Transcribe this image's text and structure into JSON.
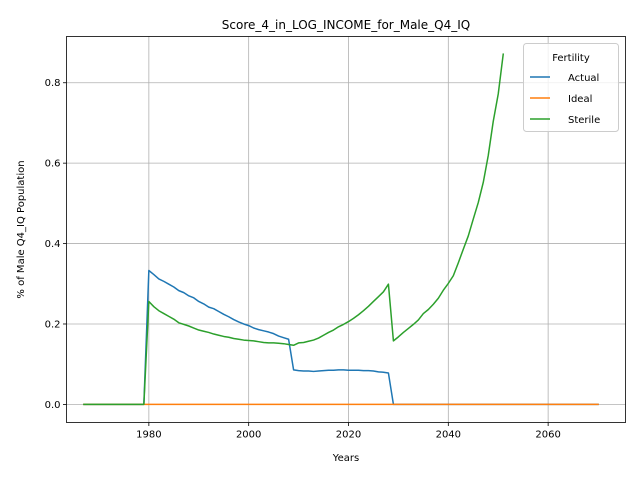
{
  "chart_data": {
    "type": "line",
    "title": "Score_4_in_LOG_INCOME_for_Male_Q4_IQ",
    "xlabel": "Years",
    "ylabel": "% of Male Q4_IQ Population",
    "xlim": [
      1963.5,
      2075.5
    ],
    "ylim": [
      -0.045,
      0.915
    ],
    "xticks": [
      1980,
      2000,
      2020,
      2040,
      2060
    ],
    "yticks": [
      0.0,
      0.2,
      0.4,
      0.6,
      0.8
    ],
    "xtick_labels": [
      "1980",
      "2000",
      "2020",
      "2040",
      "2060"
    ],
    "ytick_labels": [
      "0.0",
      "0.2",
      "0.4",
      "0.6",
      "0.8"
    ],
    "grid": true,
    "legend": {
      "title": "Fertility",
      "position": "top-right"
    },
    "series": [
      {
        "name": "Actual",
        "color": "#1f77b4",
        "points": [
          [
            1967,
            0.0
          ],
          [
            1979,
            0.0
          ],
          [
            1980,
            0.333
          ],
          [
            1981,
            0.323
          ],
          [
            1982,
            0.312
          ],
          [
            1983,
            0.306
          ],
          [
            1984,
            0.299
          ],
          [
            1985,
            0.292
          ],
          [
            1986,
            0.283
          ],
          [
            1987,
            0.278
          ],
          [
            1988,
            0.27
          ],
          [
            1989,
            0.265
          ],
          [
            1990,
            0.256
          ],
          [
            1991,
            0.25
          ],
          [
            1992,
            0.242
          ],
          [
            1993,
            0.238
          ],
          [
            1994,
            0.231
          ],
          [
            1995,
            0.224
          ],
          [
            1996,
            0.218
          ],
          [
            1997,
            0.211
          ],
          [
            1998,
            0.205
          ],
          [
            1999,
            0.2
          ],
          [
            2000,
            0.196
          ],
          [
            2001,
            0.19
          ],
          [
            2002,
            0.186
          ],
          [
            2003,
            0.183
          ],
          [
            2004,
            0.18
          ],
          [
            2005,
            0.176
          ],
          [
            2006,
            0.17
          ],
          [
            2007,
            0.166
          ],
          [
            2008,
            0.162
          ],
          [
            2009,
            0.086
          ],
          [
            2010,
            0.084
          ],
          [
            2011,
            0.083
          ],
          [
            2012,
            0.083
          ],
          [
            2013,
            0.082
          ],
          [
            2014,
            0.083
          ],
          [
            2015,
            0.084
          ],
          [
            2016,
            0.085
          ],
          [
            2017,
            0.085
          ],
          [
            2018,
            0.086
          ],
          [
            2019,
            0.086
          ],
          [
            2020,
            0.085
          ],
          [
            2021,
            0.085
          ],
          [
            2022,
            0.085
          ],
          [
            2023,
            0.084
          ],
          [
            2024,
            0.084
          ],
          [
            2025,
            0.083
          ],
          [
            2026,
            0.081
          ],
          [
            2027,
            0.08
          ],
          [
            2028,
            0.078
          ],
          [
            2029,
            0.0
          ],
          [
            2070,
            0.0
          ]
        ]
      },
      {
        "name": "Ideal",
        "color": "#ff7f0e",
        "points": [
          [
            1967,
            0.0
          ],
          [
            2070,
            0.0
          ]
        ]
      },
      {
        "name": "Sterile",
        "color": "#2ca02c",
        "points": [
          [
            1967,
            0.0
          ],
          [
            1979,
            0.0
          ],
          [
            1980,
            0.256
          ],
          [
            1981,
            0.243
          ],
          [
            1982,
            0.233
          ],
          [
            1983,
            0.226
          ],
          [
            1984,
            0.219
          ],
          [
            1985,
            0.212
          ],
          [
            1986,
            0.203
          ],
          [
            1987,
            0.199
          ],
          [
            1988,
            0.195
          ],
          [
            1989,
            0.19
          ],
          [
            1990,
            0.185
          ],
          [
            1991,
            0.182
          ],
          [
            1992,
            0.179
          ],
          [
            1993,
            0.175
          ],
          [
            1994,
            0.172
          ],
          [
            1995,
            0.169
          ],
          [
            1996,
            0.167
          ],
          [
            1997,
            0.164
          ],
          [
            1998,
            0.162
          ],
          [
            1999,
            0.16
          ],
          [
            2000,
            0.159
          ],
          [
            2001,
            0.158
          ],
          [
            2002,
            0.156
          ],
          [
            2003,
            0.154
          ],
          [
            2004,
            0.153
          ],
          [
            2005,
            0.153
          ],
          [
            2006,
            0.152
          ],
          [
            2007,
            0.151
          ],
          [
            2008,
            0.149
          ],
          [
            2009,
            0.147
          ],
          [
            2010,
            0.153
          ],
          [
            2011,
            0.154
          ],
          [
            2012,
            0.157
          ],
          [
            2013,
            0.16
          ],
          [
            2014,
            0.165
          ],
          [
            2015,
            0.172
          ],
          [
            2016,
            0.179
          ],
          [
            2017,
            0.185
          ],
          [
            2018,
            0.193
          ],
          [
            2019,
            0.199
          ],
          [
            2020,
            0.206
          ],
          [
            2021,
            0.214
          ],
          [
            2022,
            0.223
          ],
          [
            2023,
            0.233
          ],
          [
            2024,
            0.244
          ],
          [
            2025,
            0.256
          ],
          [
            2026,
            0.268
          ],
          [
            2027,
            0.28
          ],
          [
            2028,
            0.299
          ],
          [
            2029,
            0.158
          ],
          [
            2030,
            0.168
          ],
          [
            2031,
            0.179
          ],
          [
            2032,
            0.189
          ],
          [
            2033,
            0.199
          ],
          [
            2034,
            0.21
          ],
          [
            2035,
            0.226
          ],
          [
            2036,
            0.236
          ],
          [
            2037,
            0.249
          ],
          [
            2038,
            0.264
          ],
          [
            2039,
            0.284
          ],
          [
            2040,
            0.301
          ],
          [
            2041,
            0.32
          ],
          [
            2042,
            0.352
          ],
          [
            2043,
            0.386
          ],
          [
            2044,
            0.419
          ],
          [
            2045,
            0.461
          ],
          [
            2046,
            0.502
          ],
          [
            2047,
            0.552
          ],
          [
            2048,
            0.619
          ],
          [
            2049,
            0.704
          ],
          [
            2050,
            0.772
          ],
          [
            2051,
            0.871
          ]
        ]
      }
    ]
  }
}
